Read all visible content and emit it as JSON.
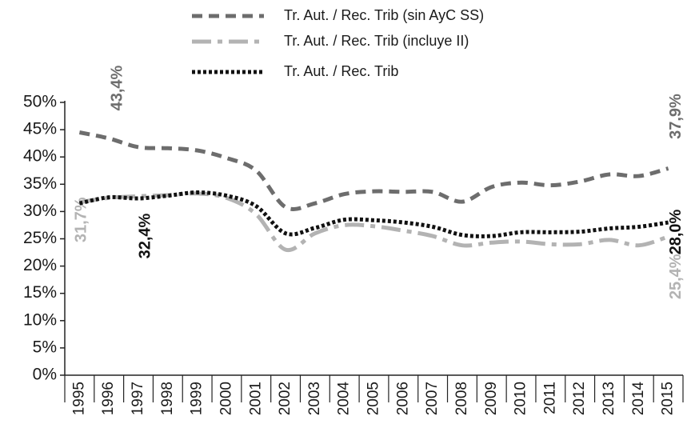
{
  "chart_data": {
    "type": "line",
    "categories": [
      "1995",
      "1996",
      "1997",
      "1998",
      "1999",
      "2000",
      "2001",
      "2002",
      "2003",
      "2004",
      "2005",
      "2006",
      "2007",
      "2008",
      "2009",
      "2010",
      "2011",
      "2012",
      "2013",
      "2014",
      "2015"
    ],
    "series": [
      {
        "name": "Tr. Aut. / Rec. Trib (sin AyC SS)",
        "color": "#6d6d6d",
        "values": [
          44.5,
          43.4,
          41.8,
          41.6,
          41.2,
          39.8,
          37.5,
          30.8,
          31.5,
          33.2,
          33.7,
          33.6,
          33.6,
          31.8,
          34.5,
          35.3,
          34.8,
          35.5,
          36.8,
          36.5,
          37.9
        ],
        "value_labels": [
          null,
          "43,4%",
          null,
          null,
          null,
          null,
          null,
          null,
          null,
          null,
          null,
          null,
          null,
          null,
          null,
          null,
          null,
          null,
          null,
          null,
          "37,9%"
        ]
      },
      {
        "name": "Tr. Aut. / Rec. Trib (incluye II)",
        "color": "#b3b3b3",
        "values": [
          31.7,
          32.5,
          32.8,
          33.0,
          33.3,
          32.5,
          29.5,
          23.0,
          26.0,
          27.5,
          27.3,
          26.5,
          25.5,
          23.8,
          24.3,
          24.5,
          24.0,
          24.0,
          24.8,
          23.8,
          25.4
        ],
        "value_labels": [
          "31,7%",
          null,
          null,
          null,
          null,
          null,
          null,
          null,
          null,
          null,
          null,
          null,
          null,
          null,
          null,
          null,
          null,
          null,
          null,
          null,
          "25,4%"
        ]
      },
      {
        "name": "Tr. Aut. / Rec. Trib",
        "color": "#111111",
        "values": [
          31.5,
          32.6,
          32.4,
          32.9,
          33.5,
          32.9,
          31.0,
          26.0,
          27.0,
          28.5,
          28.4,
          28.0,
          27.2,
          25.7,
          25.5,
          26.2,
          26.2,
          26.3,
          26.9,
          27.2,
          28.0
        ],
        "value_labels": [
          null,
          null,
          "32,4%",
          null,
          null,
          null,
          null,
          null,
          null,
          null,
          null,
          null,
          null,
          null,
          null,
          null,
          null,
          null,
          null,
          null,
          "28,0%"
        ]
      }
    ],
    "ylim": [
      0,
      50
    ],
    "yticks": [
      {
        "value": 0,
        "label": "0%"
      },
      {
        "value": 5,
        "label": "5%"
      },
      {
        "value": 10,
        "label": "10%"
      },
      {
        "value": 15,
        "label": "15%"
      },
      {
        "value": 20,
        "label": "20%"
      },
      {
        "value": 25,
        "label": "25%"
      },
      {
        "value": 30,
        "label": "30%"
      },
      {
        "value": 35,
        "label": "35%"
      },
      {
        "value": 40,
        "label": "40%"
      },
      {
        "value": 45,
        "label": "45%"
      },
      {
        "value": 50,
        "label": "50%"
      }
    ],
    "legend": "top",
    "grid": false
  }
}
